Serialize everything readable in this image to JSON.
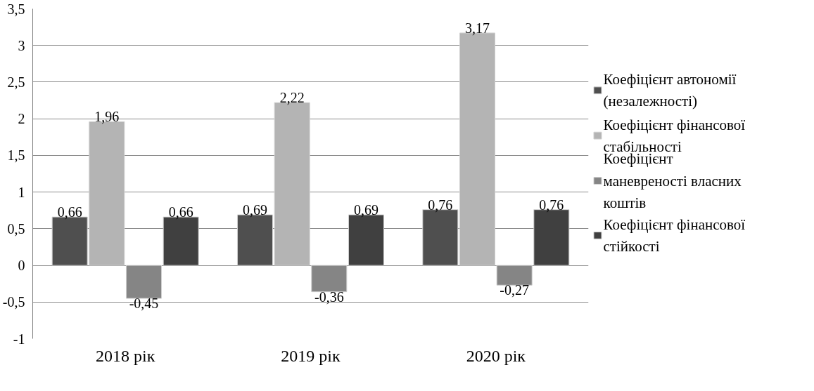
{
  "chart_data": {
    "type": "bar",
    "categories": [
      "2018 рік",
      "2019 рік",
      "2020 рік"
    ],
    "series": [
      {
        "name": "Коефіцієнт автономії (незалежності)",
        "color": "#4f4f4f",
        "values": [
          0.66,
          0.69,
          0.76
        ],
        "value_labels": [
          "0,66",
          "0,69",
          "0,76"
        ]
      },
      {
        "name": "Коефіцієнт фінансової стабільності",
        "color": "#b4b4b4",
        "values": [
          1.96,
          2.22,
          3.17
        ],
        "value_labels": [
          "1,96",
          "2,22",
          "3,17"
        ]
      },
      {
        "name": "Коефіцієнт маневреності власних коштів",
        "color": "#858585",
        "values": [
          -0.45,
          -0.36,
          -0.27
        ],
        "value_labels": [
          "-0,45",
          "-0,36",
          "-0,27"
        ]
      },
      {
        "name": "Коефіцієнт фінансової стійкості",
        "color": "#404040",
        "values": [
          0.66,
          0.69,
          0.76
        ],
        "value_labels": [
          "0,66",
          "0,69",
          "0,76"
        ]
      }
    ],
    "ylim": [
      -1,
      3.5
    ],
    "yticks": [
      -1,
      {
        "value": -0.5,
        "label": "-0,5"
      },
      0,
      {
        "value": 0.5,
        "label": "0,5"
      },
      1,
      {
        "value": 1.5,
        "label": "1,5"
      },
      2,
      {
        "value": 2.5,
        "label": "2,5"
      },
      3,
      {
        "value": 3.5,
        "label": "3,5"
      }
    ],
    "grid": "y",
    "legend": "right"
  }
}
